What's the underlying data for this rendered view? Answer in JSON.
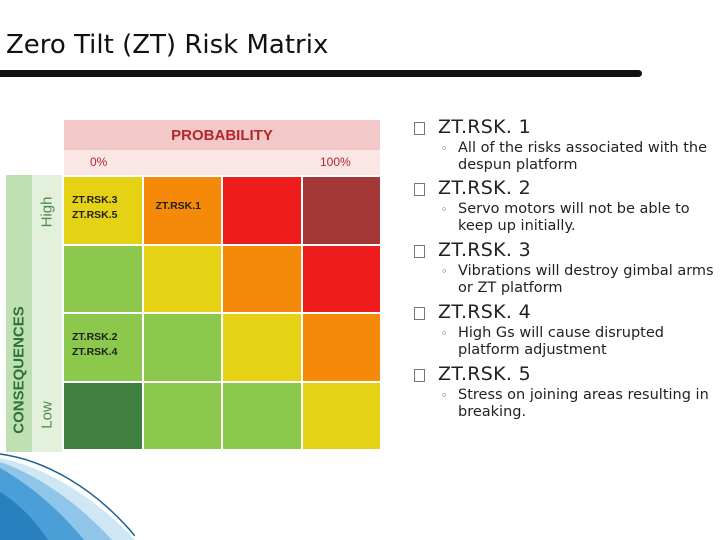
{
  "slide": {
    "title": "Zero Tilt (ZT) Risk Matrix"
  },
  "matrix": {
    "probability_label": "PROBABILITY",
    "probability_low": "0%",
    "probability_high": "100%",
    "consequences_label": "CONSEQUENCES",
    "consequence_high": "High",
    "consequence_low": "Low",
    "colors": {
      "dark_green": "#3f8040",
      "light_green": "#8cc84b",
      "yellow": "#e6d214",
      "orange": "#f58a0a",
      "red": "#ee1c1c",
      "dark_red": "#a33636"
    },
    "rows": [
      {
        "cells": [
          {
            "color": "#e6d214",
            "labels": [
              "ZT.RSK.3",
              "ZT.RSK.5"
            ]
          },
          {
            "color": "#f58a0a",
            "labels": [
              "ZT.RSK.1"
            ]
          },
          {
            "color": "#ee1c1c",
            "labels": []
          },
          {
            "color": "#a33636",
            "labels": []
          }
        ]
      },
      {
        "cells": [
          {
            "color": "#8cc84b",
            "labels": []
          },
          {
            "color": "#e6d214",
            "labels": []
          },
          {
            "color": "#f58a0a",
            "labels": []
          },
          {
            "color": "#ee1c1c",
            "labels": []
          }
        ]
      },
      {
        "cells": [
          {
            "color": "#8cc84b",
            "labels": [
              "ZT.RSK.2",
              "ZT.RSK.4"
            ]
          },
          {
            "color": "#8cc84b",
            "labels": []
          },
          {
            "color": "#e6d214",
            "labels": []
          },
          {
            "color": "#f58a0a",
            "labels": []
          }
        ]
      },
      {
        "cells": [
          {
            "color": "#3f8040",
            "labels": []
          },
          {
            "color": "#8cc84b",
            "labels": []
          },
          {
            "color": "#8cc84b",
            "labels": []
          },
          {
            "color": "#e6d214",
            "labels": []
          }
        ]
      }
    ]
  },
  "risks": [
    {
      "id": "ZT.RSK. 1",
      "description": "All of the risks associated with the despun platform"
    },
    {
      "id": "ZT.RSK. 2",
      "description": "Servo motors will not be able to keep up initially."
    },
    {
      "id": "ZT.RSK. 3",
      "description": "Vibrations will destroy gimbal arms or ZT platform"
    },
    {
      "id": "ZT.RSK. 4",
      "description": "High Gs will cause disrupted platform adjustment"
    },
    {
      "id": "ZT.RSK. 5",
      "description": "Stress on joining areas resulting in breaking."
    }
  ],
  "icons": {
    "bullet": "checkbox-bullet-icon",
    "sub_bullet": "ring-bullet-icon",
    "corner": "blue-wave-decoration"
  }
}
